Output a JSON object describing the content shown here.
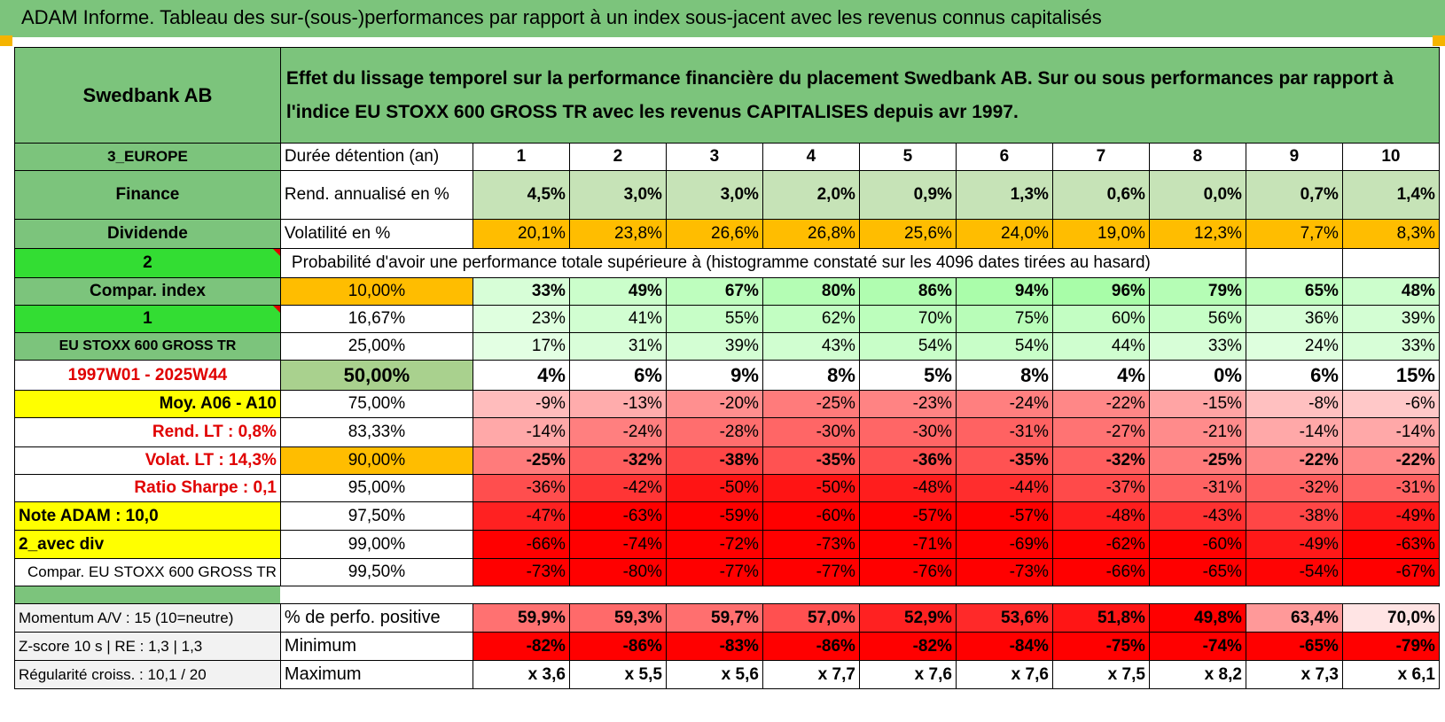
{
  "header": {
    "title": "ADAM Informe. Tableau des sur-(sous-)performances par rapport à un index sous-jacent avec les revenus connus capitalisés"
  },
  "colors": {
    "green_header": "#7cc47c",
    "bright_green": "#33dd33",
    "yellow": "#ffff00",
    "orange": "#ffbd00",
    "label_red": "#e00000"
  },
  "left": {
    "name": "Swedbank AB",
    "region": "3_EUROPE",
    "sector": "Finance",
    "type": "Dividende",
    "num2": "2",
    "compar_index": "Compar. index",
    "num1": "1",
    "index_name": "EU STOXX 600 GROSS TR",
    "period": "1997W01 - 2025W44",
    "moy": "Moy. A06 - A10",
    "rend_lt": "Rend. LT :   0,8%",
    "volat_lt": "Volat. LT :   14,3%",
    "sharpe": "Ratio Sharpe :    0,1",
    "note": "Note ADAM : 10,0",
    "avec_div": "2_avec div",
    "compar_full": "Compar. EU STOXX 600 GROSS TR",
    "momentum": "Momentum A/V : 15 (10=neutre)",
    "zscore": "Z-score 10 s | RE : 1,3 | 1,3",
    "regularite": "Régularité croiss. : 10,1 / 20"
  },
  "description": "Effet du lissage temporel sur la performance financière du placement Swedbank AB. Sur ou sous performances par rapport à l'indice EU STOXX 600 GROSS TR avec les revenus CAPITALISES depuis avr 1997.",
  "duree_label": "Durée détention (an)",
  "years": [
    "1",
    "2",
    "3",
    "4",
    "5",
    "6",
    "7",
    "8",
    "9",
    "10"
  ],
  "rend_label": "Rend. annualisé en %",
  "rend": [
    "4,5%",
    "3,0%",
    "3,0%",
    "2,0%",
    "0,9%",
    "1,3%",
    "0,6%",
    "0,0%",
    "0,7%",
    "1,4%"
  ],
  "vol_label": "Volatilité en %",
  "vol": [
    "20,1%",
    "23,8%",
    "26,6%",
    "26,8%",
    "25,6%",
    "24,0%",
    "19,0%",
    "12,3%",
    "7,7%",
    "8,3%"
  ],
  "prob_label": "Probabilité d'avoir une performance totale supérieure à (histogramme constaté sur les 4096 dates tirées au hasard)",
  "prob_rows": [
    {
      "pct": "10,00%",
      "values": [
        "33%",
        "49%",
        "67%",
        "80%",
        "86%",
        "94%",
        "96%",
        "79%",
        "65%",
        "48%"
      ]
    },
    {
      "pct": "16,67%",
      "values": [
        "23%",
        "41%",
        "55%",
        "62%",
        "70%",
        "75%",
        "60%",
        "56%",
        "36%",
        "39%"
      ]
    },
    {
      "pct": "25,00%",
      "values": [
        "17%",
        "31%",
        "39%",
        "43%",
        "54%",
        "54%",
        "44%",
        "33%",
        "24%",
        "33%"
      ]
    },
    {
      "pct": "50,00%",
      "values": [
        "4%",
        "6%",
        "9%",
        "8%",
        "5%",
        "8%",
        "4%",
        "0%",
        "6%",
        "15%"
      ]
    },
    {
      "pct": "75,00%",
      "values": [
        "-9%",
        "-13%",
        "-20%",
        "-25%",
        "-23%",
        "-24%",
        "-22%",
        "-15%",
        "-8%",
        "-6%"
      ]
    },
    {
      "pct": "83,33%",
      "values": [
        "-14%",
        "-24%",
        "-28%",
        "-30%",
        "-30%",
        "-31%",
        "-27%",
        "-21%",
        "-14%",
        "-14%"
      ]
    },
    {
      "pct": "90,00%",
      "values": [
        "-25%",
        "-32%",
        "-38%",
        "-35%",
        "-36%",
        "-35%",
        "-32%",
        "-25%",
        "-22%",
        "-22%"
      ]
    },
    {
      "pct": "95,00%",
      "values": [
        "-36%",
        "-42%",
        "-50%",
        "-50%",
        "-48%",
        "-44%",
        "-37%",
        "-31%",
        "-32%",
        "-31%"
      ]
    },
    {
      "pct": "97,50%",
      "values": [
        "-47%",
        "-63%",
        "-59%",
        "-60%",
        "-57%",
        "-57%",
        "-48%",
        "-43%",
        "-38%",
        "-49%"
      ]
    },
    {
      "pct": "99,00%",
      "values": [
        "-66%",
        "-74%",
        "-72%",
        "-73%",
        "-71%",
        "-69%",
        "-62%",
        "-60%",
        "-49%",
        "-63%"
      ]
    },
    {
      "pct": "99,50%",
      "values": [
        "-73%",
        "-80%",
        "-77%",
        "-77%",
        "-76%",
        "-73%",
        "-66%",
        "-65%",
        "-54%",
        "-67%"
      ]
    }
  ],
  "positive_label": "% de perfo. positive",
  "positive": [
    "59,9%",
    "59,3%",
    "59,7%",
    "57,0%",
    "52,9%",
    "53,6%",
    "51,8%",
    "49,8%",
    "63,4%",
    "70,0%"
  ],
  "min_label": "Minimum",
  "minimum": [
    "-82%",
    "-86%",
    "-83%",
    "-86%",
    "-82%",
    "-84%",
    "-75%",
    "-74%",
    "-65%",
    "-79%"
  ],
  "max_label": "Maximum",
  "maximum": [
    "x 3,6",
    "x 5,5",
    "x 5,6",
    "x 7,7",
    "x 7,6",
    "x 7,6",
    "x 7,5",
    "x 8,2",
    "x 7,3",
    "x 6,1"
  ]
}
